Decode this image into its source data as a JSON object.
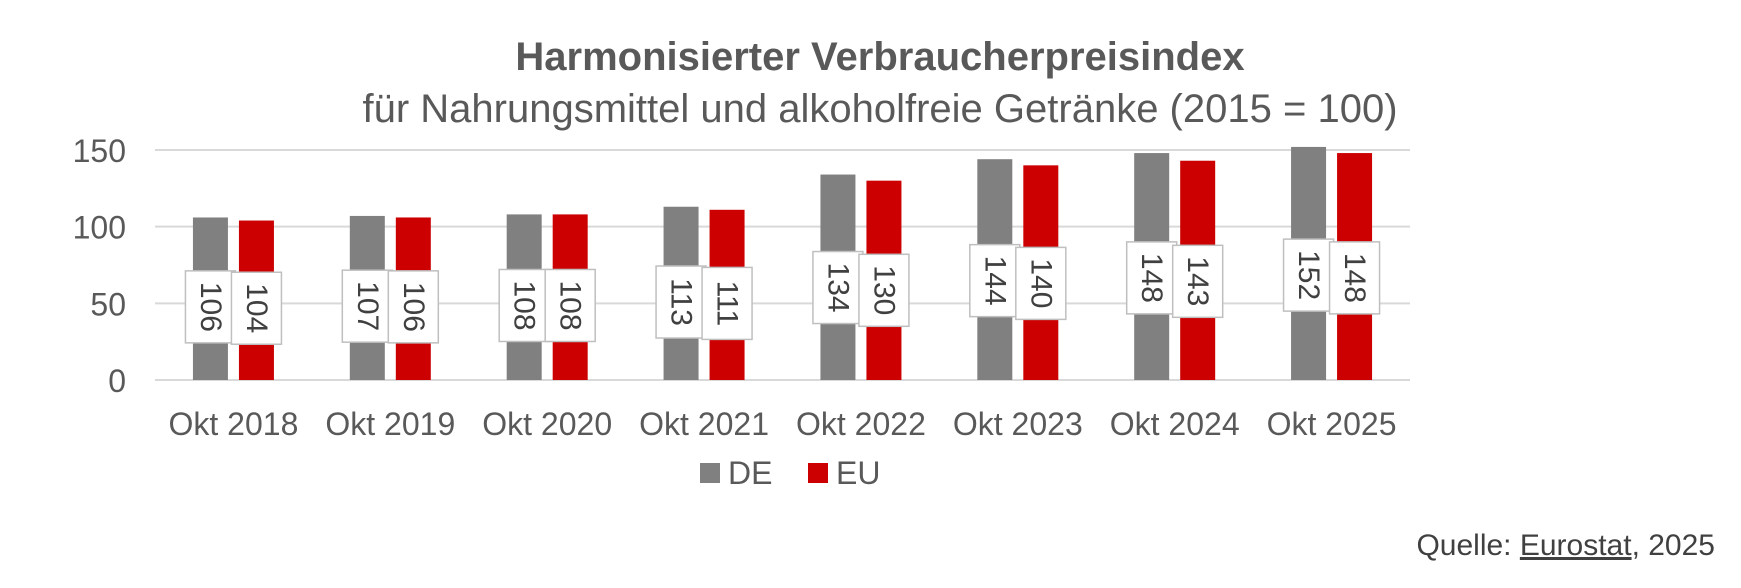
{
  "chart_data": {
    "type": "bar",
    "title": "Harmonisierter Verbraucherpreisindex",
    "subtitle": "für Nahrungsmittel und alkoholfreie Getränke (2015 = 100)",
    "categories": [
      "Okt 2018",
      "Okt 2019",
      "Okt 2020",
      "Okt 2021",
      "Okt 2022",
      "Okt 2023",
      "Okt 2024",
      "Okt 2025"
    ],
    "series": [
      {
        "name": "DE",
        "color": "#808080",
        "values": [
          106,
          107,
          108,
          113,
          134,
          144,
          148,
          152
        ]
      },
      {
        "name": "EU",
        "color": "#cc0000",
        "values": [
          104,
          106,
          108,
          111,
          130,
          140,
          143,
          148
        ]
      }
    ],
    "ylim": [
      0,
      150
    ],
    "yticks": [
      0,
      50,
      100,
      150
    ],
    "grid": true,
    "legend": "bottom",
    "data_labels": "rotated, boxed"
  },
  "source": {
    "prefix": "Quelle: ",
    "link_text": "Eurostat",
    "suffix": ", 2025"
  }
}
